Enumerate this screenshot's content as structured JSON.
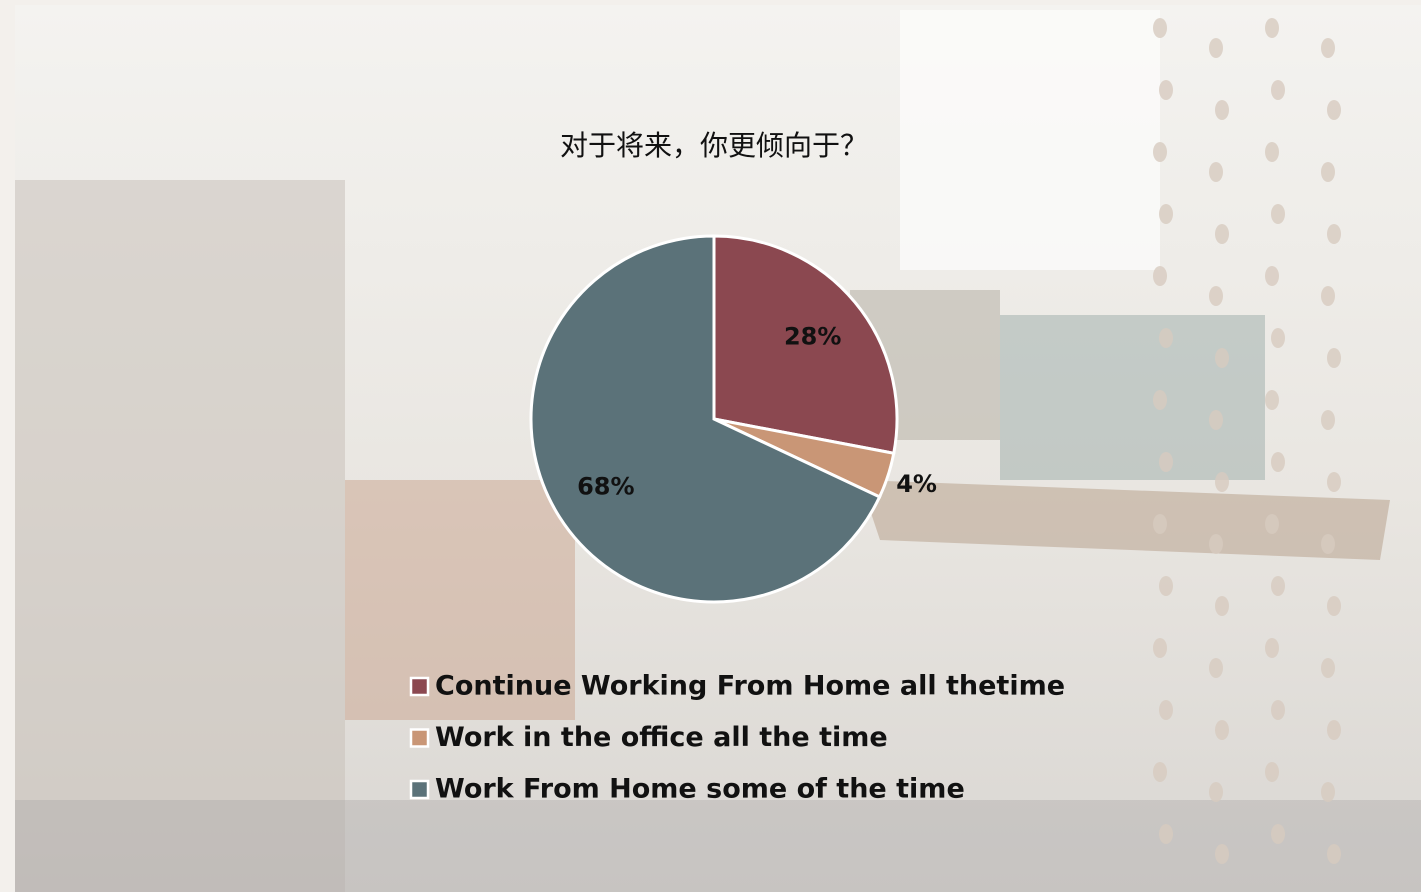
{
  "chart_data": {
    "type": "pie",
    "title": "对于将来，你更倾向于？",
    "categories": [
      "Continue Working From Home all thetime",
      "Work in the office all the time",
      "Work From Home some of the time"
    ],
    "values": [
      28,
      4,
      68
    ],
    "value_labels": [
      "28%",
      "4%",
      "68%"
    ],
    "colors": [
      "#8b4850",
      "#c99676",
      "#5b7279"
    ],
    "legend": "bottom"
  }
}
